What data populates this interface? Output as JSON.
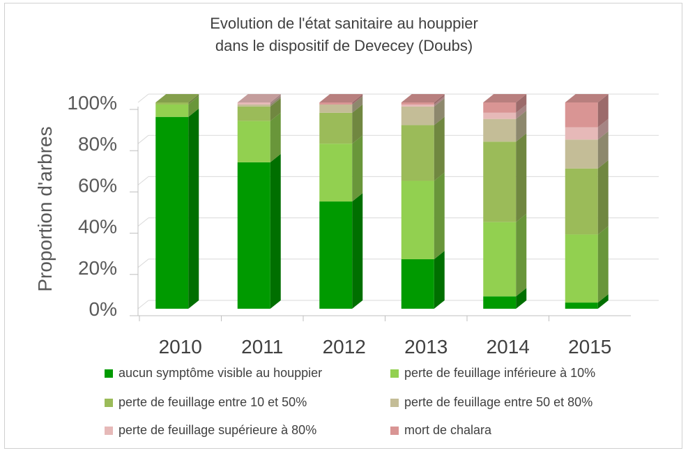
{
  "chart_data": {
    "type": "bar",
    "stacked": true,
    "three_d": true,
    "title": [
      "Evolution de l'état sanitaire au houppier",
      "dans le dispositif de Devecey (Doubs)"
    ],
    "ylabel": "Proportion d'arbres",
    "xlabel": "",
    "categories": [
      "2010",
      "2011",
      "2012",
      "2013",
      "2014",
      "2015"
    ],
    "ylim": [
      0,
      100
    ],
    "ytick_labels": [
      "0%",
      "20%",
      "40%",
      "60%",
      "80%",
      "100%"
    ],
    "yticks": [
      0,
      20,
      40,
      60,
      80,
      100
    ],
    "grid": true,
    "legend_position": "bottom",
    "series": [
      {
        "name": "aucun symptôme visible au houppier",
        "color": "#009a00",
        "values": [
          93,
          71,
          52,
          24,
          6,
          3
        ]
      },
      {
        "name": "perte de feuillage inférieure à 10%",
        "color": "#92d050",
        "values": [
          6,
          20,
          28,
          38,
          36,
          33
        ]
      },
      {
        "name": "perte de feuillage entre 10 et 50%",
        "color": "#9bbb59",
        "values": [
          1,
          7,
          15,
          27,
          39,
          32
        ]
      },
      {
        "name": "perte de feuillage entre 50 et 80%",
        "color": "#c4bd97",
        "values": [
          0,
          1,
          4,
          9,
          11,
          14
        ]
      },
      {
        "name": "perte de feuillage supérieure à 80%",
        "color": "#e6b9b8",
        "values": [
          0,
          1,
          0,
          1,
          3,
          6
        ]
      },
      {
        "name": "mort de chalara",
        "color": "#d99594",
        "values": [
          0,
          0,
          1,
          1,
          5,
          12
        ]
      }
    ]
  }
}
